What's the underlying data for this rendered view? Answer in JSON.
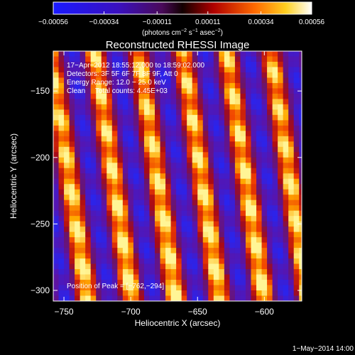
{
  "chart_data": {
    "type": "heatmap",
    "title": "Reconstructed RHESSI Image",
    "xlabel": "Heliocentric X (arcsec)",
    "ylabel": "Heliocentric Y (arcsec)",
    "xlim": [
      -758,
      -572
    ],
    "ylim": [
      -308,
      -120
    ],
    "x_ticks": [
      -750,
      -700,
      -650,
      -600
    ],
    "x_tick_labels": [
      "−750",
      "−700",
      "−650",
      "−600"
    ],
    "y_ticks": [
      -300,
      -250,
      -200,
      -150
    ],
    "y_tick_labels": [
      "−300",
      "−250",
      "−200",
      "−150"
    ],
    "colorbar": {
      "range": [
        -0.00056,
        0.00056
      ],
      "ticks": [
        -0.00056,
        -0.00034,
        -0.00011,
        0.00011,
        0.00034,
        0.00056
      ],
      "tick_labels": [
        "−0.00056",
        "−0.00034",
        "−0.00011",
        "0.00011",
        "0.00034",
        "0.00056"
      ],
      "label_main": "(photons cm",
      "label_exp1": "−2",
      "label_mid1": " s",
      "label_exp2": "−1",
      "label_mid2": " asec",
      "label_exp3": "−2",
      "label_end": ")"
    },
    "annotations": [
      "17−Apr−2012 18:55:12.000 to 18:59:02.000",
      "Detectors: 3F 5F 6F 7F 8F 9F, Att 0",
      "Energy Range: 12.0 − 25.0 keV",
      "Clean     Total counts: 4.45E+03"
    ],
    "peak_label": "Position of Peak = [−762,−294]",
    "peak_position": [
      -762,
      -294
    ],
    "stripes": {
      "positive_centers_at_y_minus_200": [
        -750,
        -720,
        -687,
        -653,
        -620,
        -590
      ],
      "tilt_arcsec_x_per_arcsec_y": -0.15,
      "period_arcsec": 33
    }
  },
  "footer": {
    "timestamp": "1−May−2014 14:00"
  }
}
